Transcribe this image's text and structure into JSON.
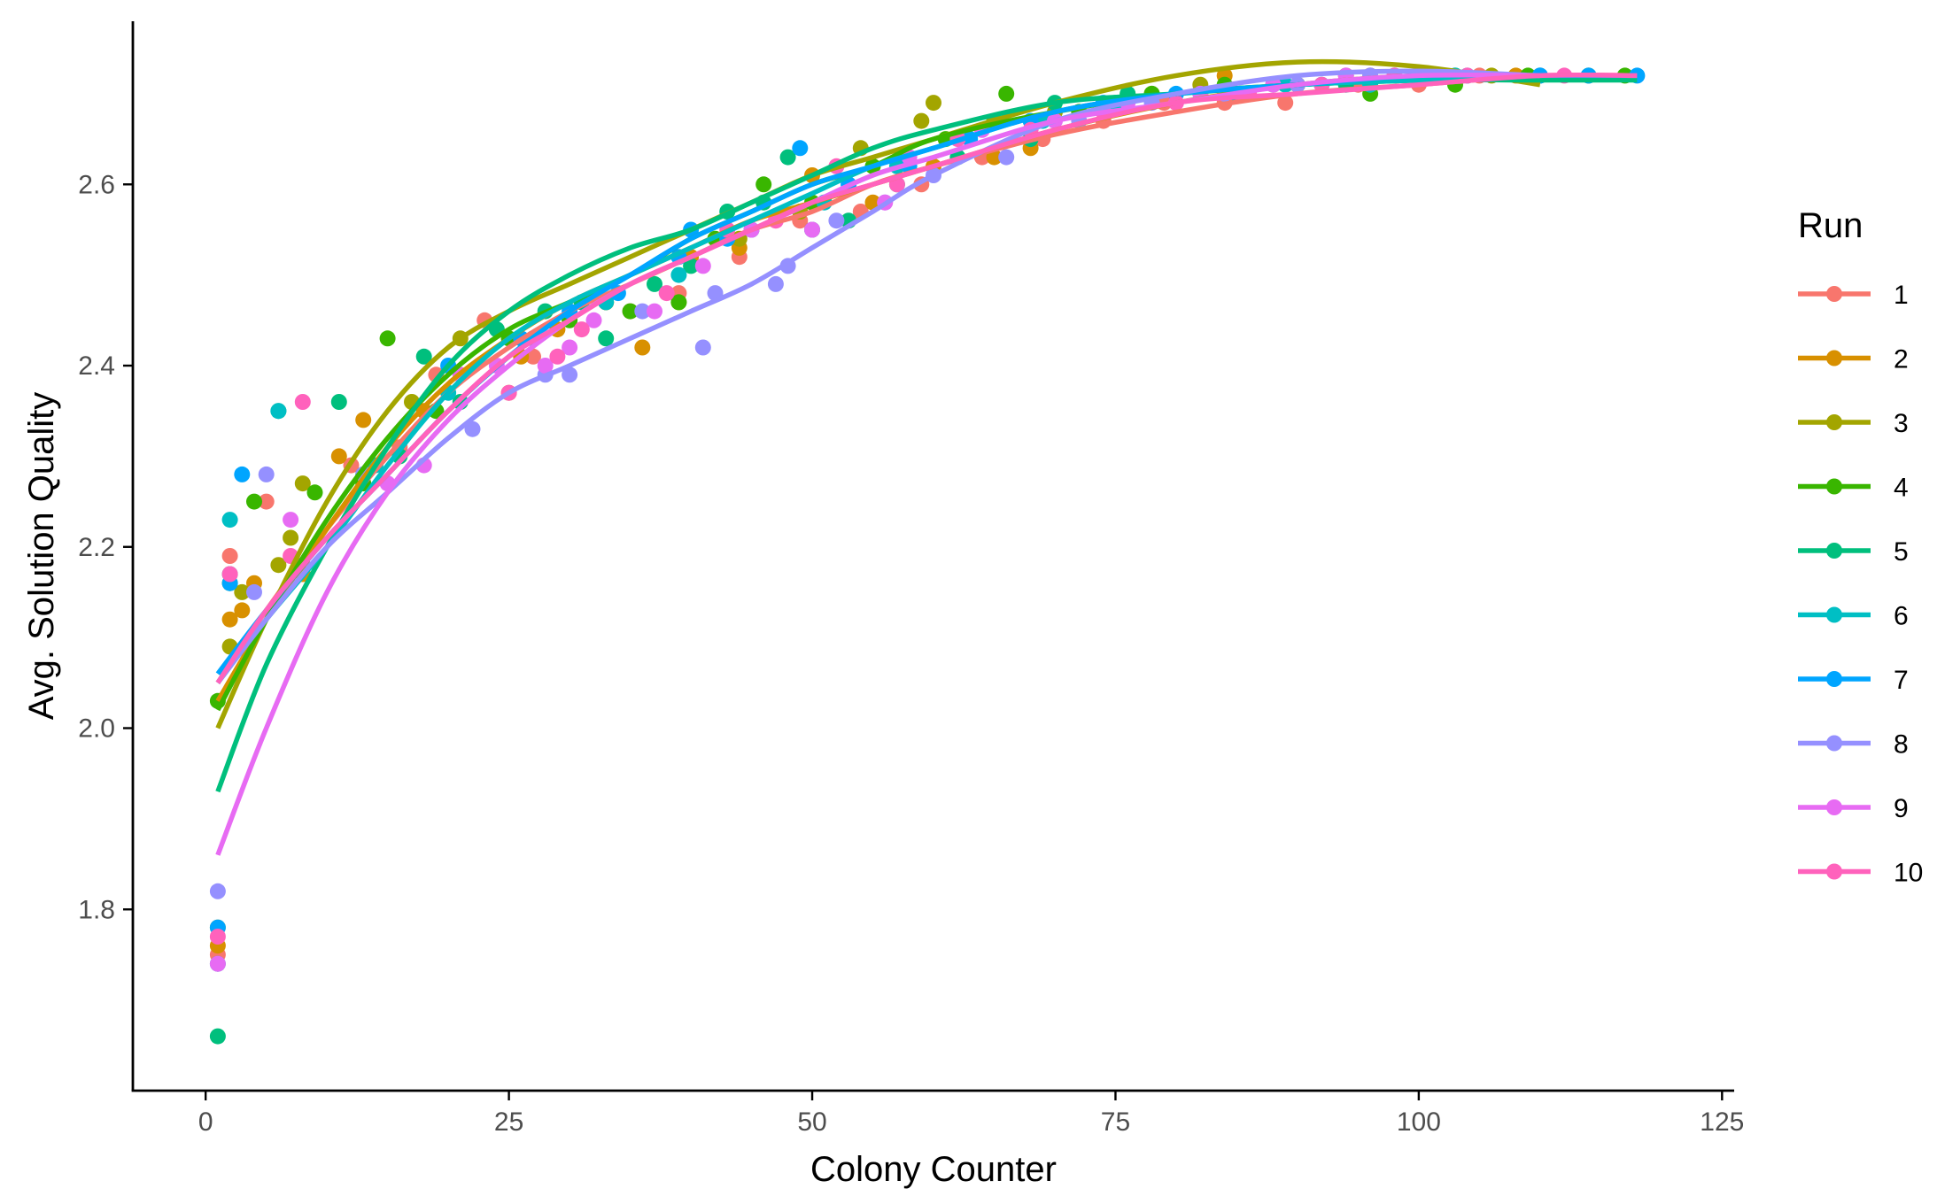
{
  "chart_data": {
    "type": "scatter",
    "title": "",
    "xlabel": "Colony Counter",
    "ylabel": "Avg. Solution Quality",
    "xlim": [
      -6,
      126
    ],
    "ylim": [
      1.6,
      2.78
    ],
    "xticks": [
      0,
      25,
      50,
      75,
      100,
      125
    ],
    "yticks": [
      1.8,
      2.0,
      2.2,
      2.4,
      2.6
    ],
    "xtick_labels": [
      "0",
      "25",
      "50",
      "75",
      "100",
      "125"
    ],
    "ytick_labels": [
      "1.8",
      "2.0",
      "2.2",
      "2.4",
      "2.6"
    ],
    "grid": false,
    "smoothing": "loess",
    "legend": {
      "title": "Run",
      "placement": "right"
    },
    "series": [
      {
        "name": "1",
        "color": "#F8766D",
        "x": [
          1,
          2,
          5,
          8,
          12,
          16,
          19,
          23,
          27,
          31,
          35,
          39,
          44,
          49,
          54,
          59,
          64,
          69,
          74,
          79,
          84,
          89,
          95,
          100,
          105,
          110
        ],
        "y": [
          1.75,
          2.19,
          2.25,
          2.18,
          2.29,
          2.31,
          2.39,
          2.45,
          2.41,
          2.47,
          2.46,
          2.48,
          2.52,
          2.56,
          2.57,
          2.6,
          2.63,
          2.65,
          2.67,
          2.69,
          2.69,
          2.69,
          2.71,
          2.71,
          2.72,
          2.72
        ]
      },
      {
        "name": "2",
        "color": "#D89000",
        "x": [
          1,
          2,
          3,
          4,
          8,
          11,
          13,
          18,
          25,
          26,
          29,
          33,
          36,
          40,
          44,
          50,
          55,
          60,
          65,
          68,
          72,
          78,
          84,
          90,
          96,
          102,
          108
        ],
        "y": [
          1.76,
          2.12,
          2.13,
          2.16,
          2.17,
          2.3,
          2.34,
          2.35,
          2.37,
          2.41,
          2.44,
          2.47,
          2.42,
          2.52,
          2.53,
          2.61,
          2.58,
          2.62,
          2.63,
          2.64,
          2.68,
          2.7,
          2.72,
          2.71,
          2.72,
          2.72,
          2.72
        ]
      },
      {
        "name": "3",
        "color": "#A3A500",
        "x": [
          1,
          2,
          3,
          6,
          7,
          8,
          17,
          21,
          27,
          33,
          39,
          44,
          49,
          54,
          59,
          60,
          65,
          70,
          76,
          82,
          88,
          94,
          100,
          106
        ],
        "y": [
          1.78,
          2.09,
          2.15,
          2.18,
          2.21,
          2.27,
          2.36,
          2.43,
          2.43,
          2.47,
          2.47,
          2.54,
          2.57,
          2.64,
          2.67,
          2.69,
          2.67,
          2.68,
          2.7,
          2.71,
          2.71,
          2.72,
          2.72,
          2.72
        ]
      },
      {
        "name": "4",
        "color": "#39B600",
        "x": [
          1,
          2,
          4,
          9,
          13,
          15,
          19,
          25,
          30,
          35,
          39,
          42,
          46,
          50,
          55,
          61,
          66,
          72,
          78,
          84,
          90,
          96,
          103,
          109,
          114,
          117
        ],
        "y": [
          2.03,
          2.16,
          2.25,
          2.26,
          2.27,
          2.43,
          2.35,
          2.43,
          2.45,
          2.46,
          2.47,
          2.54,
          2.6,
          2.58,
          2.62,
          2.65,
          2.7,
          2.68,
          2.7,
          2.71,
          2.71,
          2.7,
          2.71,
          2.72,
          2.72,
          2.72
        ]
      },
      {
        "name": "5",
        "color": "#00BF7D",
        "x": [
          1,
          2,
          6,
          11,
          13,
          16,
          18,
          21,
          24,
          28,
          31,
          33,
          37,
          40,
          43,
          46,
          48,
          50,
          53,
          57,
          62,
          68,
          70,
          76,
          85,
          94,
          103
        ],
        "y": [
          1.66,
          2.17,
          2.35,
          2.36,
          2.28,
          2.3,
          2.41,
          2.36,
          2.44,
          2.46,
          2.47,
          2.43,
          2.49,
          2.51,
          2.57,
          2.58,
          2.63,
          2.55,
          2.56,
          2.6,
          2.63,
          2.65,
          2.69,
          2.7,
          2.7,
          2.71,
          2.72
        ]
      },
      {
        "name": "6",
        "color": "#00BFC4",
        "x": [
          1,
          2,
          6,
          14,
          20,
          27,
          33,
          39,
          45,
          51,
          57,
          63,
          69,
          75,
          82,
          89,
          96,
          103,
          110
        ],
        "y": [
          1.74,
          2.23,
          2.35,
          2.29,
          2.37,
          2.43,
          2.47,
          2.5,
          2.55,
          2.58,
          2.62,
          2.65,
          2.67,
          2.69,
          2.7,
          2.71,
          2.71,
          2.72,
          2.72
        ]
      },
      {
        "name": "7",
        "color": "#00A5FF",
        "x": [
          1,
          2,
          3,
          20,
          26,
          30,
          34,
          39,
          40,
          43,
          49,
          53,
          58,
          63,
          68,
          74,
          80,
          86,
          92,
          98,
          104,
          110,
          114,
          118
        ],
        "y": [
          1.78,
          2.16,
          2.28,
          2.4,
          2.43,
          2.46,
          2.48,
          2.52,
          2.55,
          2.54,
          2.64,
          2.6,
          2.62,
          2.65,
          2.67,
          2.69,
          2.7,
          2.7,
          2.71,
          2.72,
          2.72,
          2.72,
          2.72,
          2.72
        ]
      },
      {
        "name": "8",
        "color": "#9590FF",
        "x": [
          1,
          4,
          5,
          13,
          22,
          28,
          30,
          36,
          41,
          42,
          47,
          48,
          52,
          56,
          60,
          66,
          72,
          78,
          84,
          90,
          96
        ],
        "y": [
          1.82,
          2.15,
          2.28,
          2.28,
          2.33,
          2.39,
          2.39,
          2.46,
          2.42,
          2.48,
          2.49,
          2.51,
          2.56,
          2.58,
          2.61,
          2.63,
          2.67,
          2.69,
          2.7,
          2.71,
          2.72
        ]
      },
      {
        "name": "9",
        "color": "#E76BF3",
        "x": [
          1,
          7,
          15,
          18,
          21,
          24,
          28,
          30,
          32,
          37,
          41,
          45,
          50,
          56,
          58,
          64,
          70,
          76,
          82,
          88,
          94
        ],
        "y": [
          1.74,
          2.23,
          2.27,
          2.29,
          2.39,
          2.4,
          2.4,
          2.42,
          2.45,
          2.46,
          2.51,
          2.55,
          2.55,
          2.58,
          2.63,
          2.66,
          2.67,
          2.69,
          2.7,
          2.71,
          2.72
        ]
      },
      {
        "name": "10",
        "color": "#FF62BC",
        "x": [
          1,
          2,
          7,
          8,
          25,
          29,
          31,
          38,
          43,
          47,
          52,
          57,
          62,
          68,
          74,
          80,
          86,
          92,
          98,
          104,
          112
        ],
        "y": [
          1.77,
          2.17,
          2.19,
          2.36,
          2.37,
          2.41,
          2.44,
          2.48,
          2.55,
          2.56,
          2.62,
          2.6,
          2.65,
          2.66,
          2.68,
          2.69,
          2.7,
          2.71,
          2.72,
          2.72,
          2.72
        ]
      }
    ],
    "smooth_x": [
      1,
      5,
      10,
      15,
      20,
      25,
      30,
      35,
      40,
      45,
      50,
      55,
      60,
      70,
      80,
      90,
      100,
      110,
      118
    ],
    "smooth_y": [
      [
        2.05,
        2.13,
        2.22,
        2.3,
        2.37,
        2.42,
        2.46,
        2.49,
        2.52,
        2.55,
        2.57,
        2.6,
        2.62,
        2.655,
        2.68,
        2.7,
        2.71,
        2.72,
        2.72
      ],
      [
        2.03,
        2.12,
        2.22,
        2.31,
        2.38,
        2.43,
        2.47,
        2.5,
        2.53,
        2.56,
        2.58,
        2.6,
        2.62,
        2.66,
        2.69,
        2.71,
        2.72,
        2.72,
        2.72
      ],
      [
        2.0,
        2.12,
        2.25,
        2.35,
        2.42,
        2.46,
        2.49,
        2.52,
        2.55,
        2.58,
        2.61,
        2.63,
        2.65,
        2.69,
        2.72,
        2.735,
        2.73,
        2.71
      ],
      [
        2.02,
        2.12,
        2.23,
        2.32,
        2.39,
        2.44,
        2.47,
        2.5,
        2.54,
        2.57,
        2.6,
        2.62,
        2.65,
        2.68,
        2.7,
        2.71,
        2.715,
        2.72,
        2.72
      ],
      [
        1.93,
        2.07,
        2.2,
        2.31,
        2.4,
        2.46,
        2.5,
        2.53,
        2.55,
        2.58,
        2.61,
        2.64,
        2.66,
        2.69,
        2.7,
        2.71,
        2.715,
        2.715,
        2.715
      ],
      [
        2.05,
        2.12,
        2.2,
        2.29,
        2.37,
        2.43,
        2.47,
        2.5,
        2.53,
        2.56,
        2.59,
        2.62,
        2.64,
        2.68,
        2.7,
        2.71,
        2.715,
        2.72,
        2.72
      ],
      [
        2.06,
        2.13,
        2.21,
        2.28,
        2.35,
        2.41,
        2.46,
        2.5,
        2.54,
        2.57,
        2.6,
        2.62,
        2.64,
        2.68,
        2.7,
        2.71,
        2.72,
        2.72,
        2.72
      ],
      [
        2.05,
        2.12,
        2.2,
        2.26,
        2.32,
        2.37,
        2.4,
        2.43,
        2.46,
        2.49,
        2.53,
        2.57,
        2.61,
        2.67,
        2.7,
        2.72,
        2.725,
        2.72
      ],
      [
        1.86,
        2.0,
        2.15,
        2.26,
        2.34,
        2.4,
        2.45,
        2.49,
        2.52,
        2.55,
        2.58,
        2.61,
        2.63,
        2.67,
        2.69,
        2.71,
        2.72,
        2.72
      ],
      [
        2.05,
        2.13,
        2.21,
        2.28,
        2.35,
        2.41,
        2.45,
        2.49,
        2.52,
        2.55,
        2.58,
        2.6,
        2.62,
        2.66,
        2.69,
        2.7,
        2.71,
        2.72,
        2.72
      ]
    ]
  }
}
